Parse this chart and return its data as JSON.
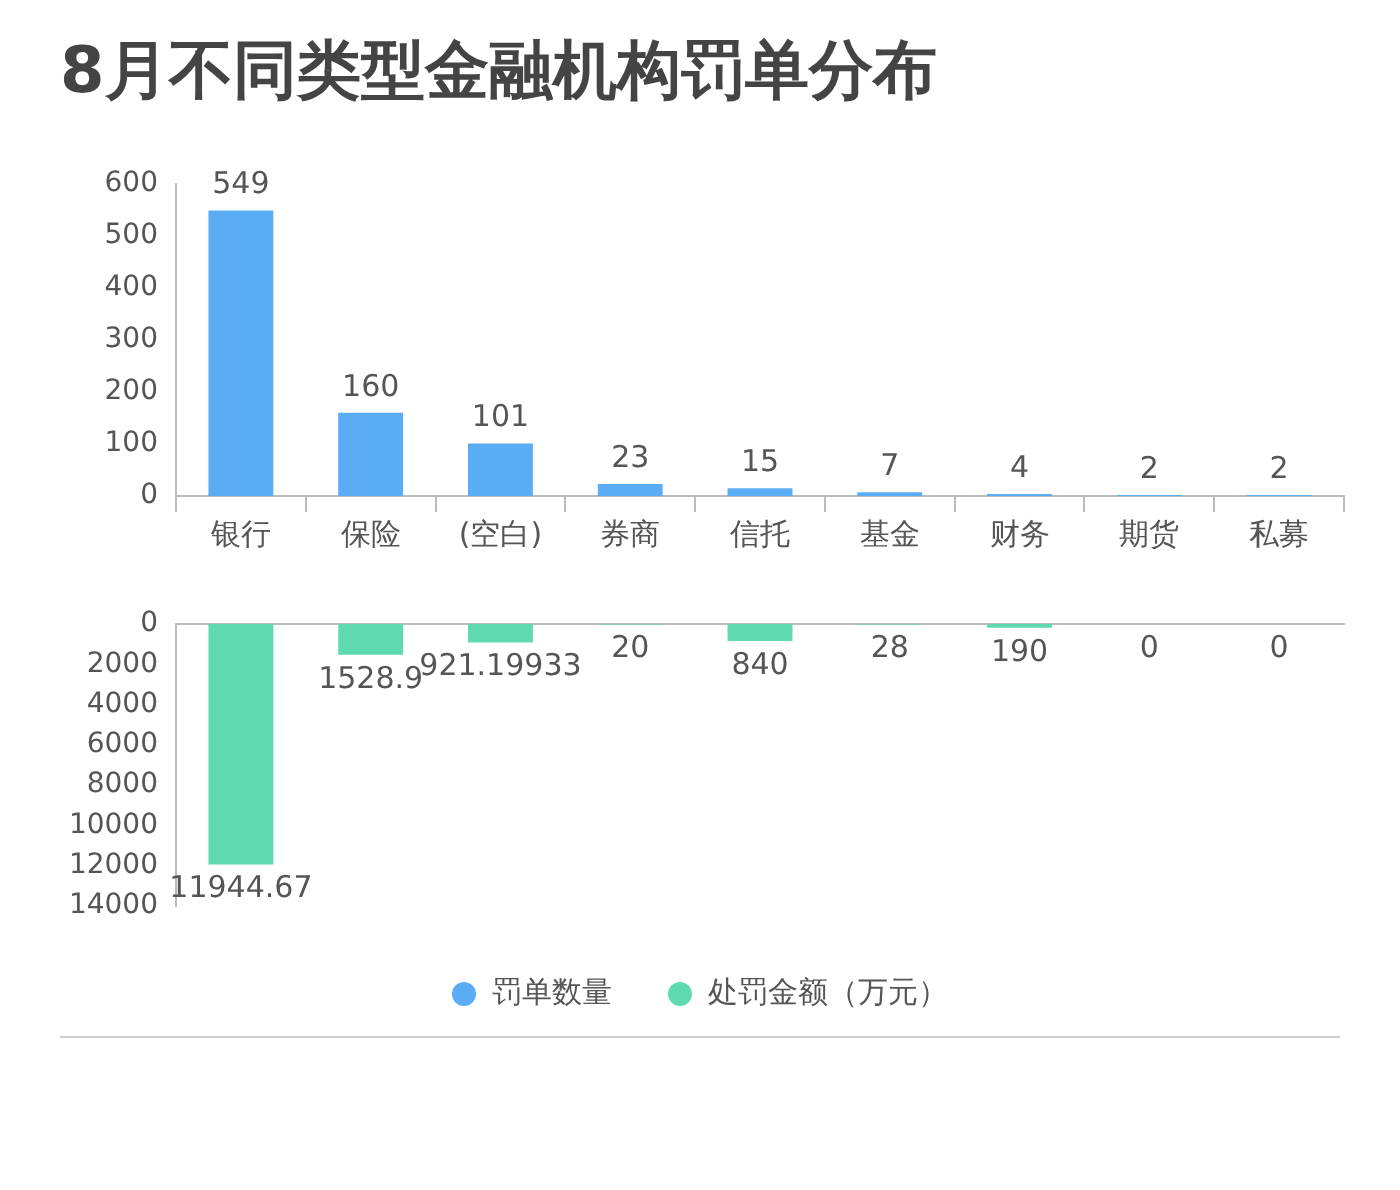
{
  "chart_data": [
    {
      "type": "bar",
      "title": "8月不同类型金融机构罚单分布",
      "categories": [
        "银行",
        "保险",
        "(空白)",
        "券商",
        "信托",
        "基金",
        "财务",
        "期货",
        "私募"
      ],
      "series": [
        {
          "name": "罚单数量",
          "color": "#5aacf5",
          "values": [
            549,
            160,
            101,
            23,
            15,
            7,
            4,
            2,
            2
          ]
        }
      ],
      "ylim": [
        0,
        600
      ],
      "yticks": [
        0,
        100,
        200,
        300,
        400,
        500,
        600
      ],
      "data_labels": true,
      "legend": "bottom"
    },
    {
      "type": "bar",
      "categories": [
        null,
        null,
        null,
        null,
        null,
        null,
        null,
        null,
        null
      ],
      "series": [
        {
          "name": "处罚金额（万元）",
          "color": "#5fd9b0",
          "values": [
            11944.67,
            1528.9,
            921.19933,
            20,
            840,
            28,
            190,
            0,
            0
          ]
        }
      ],
      "ylim": [
        14000,
        0
      ],
      "yticks": [
        0,
        2000,
        4000,
        6000,
        8000,
        10000,
        12000,
        14000
      ],
      "data_labels": true,
      "legend": "bottom"
    }
  ]
}
